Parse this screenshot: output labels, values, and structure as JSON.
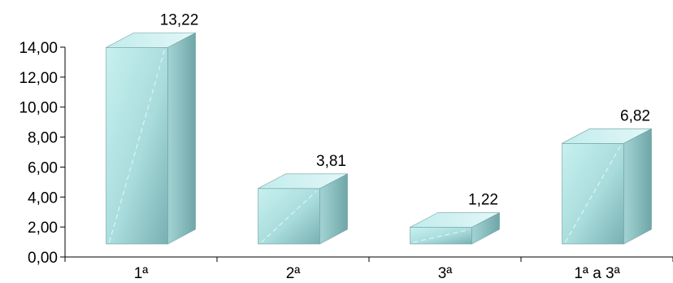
{
  "chart_data": {
    "type": "bar",
    "style": "3d-columns",
    "categories": [
      "1ª",
      "2ª",
      "3ª",
      "1ª a 3ª"
    ],
    "values": [
      13.22,
      3.81,
      1.22,
      6.82
    ],
    "data_labels": [
      "13,22",
      "3,81",
      "1,22",
      "6,82"
    ],
    "y_ticks": [
      "0,00",
      "2,00",
      "4,00",
      "6,00",
      "8,00",
      "10,00",
      "12,00",
      "14,00"
    ],
    "ylim": [
      0,
      14
    ],
    "grid": false,
    "legend": "none",
    "colors": {
      "front": "#b8e6e6",
      "front_dark": "#7fb9bb",
      "side": "#8fc5c6",
      "top": "#d4f0f0",
      "axis": "#000000"
    }
  }
}
